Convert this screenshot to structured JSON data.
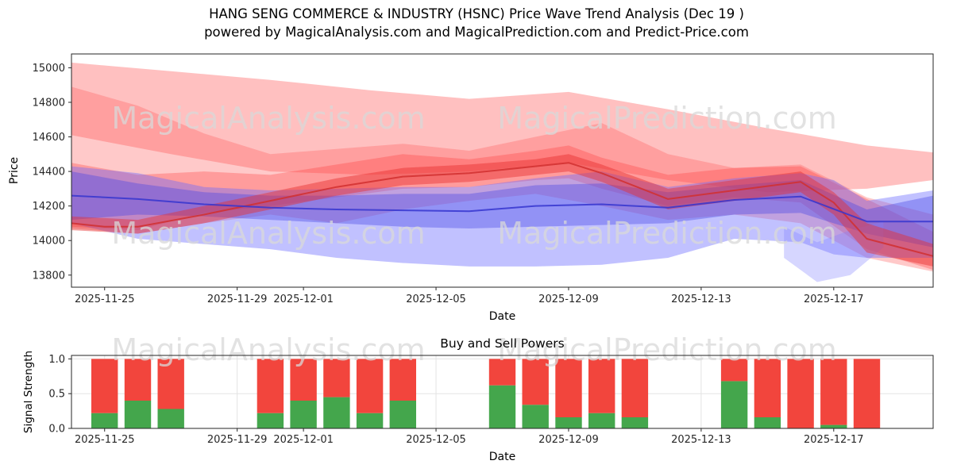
{
  "title": "HANG SENG COMMERCE & INDUSTRY (HSNC) Price Wave Trend Analysis (Dec 19 )",
  "subtitle": "powered by MagicalAnalysis.com and MagicalPrediction.com and Predict-Price.com",
  "watermarks": [
    "MagicalAnalysis.com",
    "MagicalPrediction.com"
  ],
  "chart_data": [
    {
      "type": "area",
      "name": "price-wave-trend",
      "xlabel": "Date",
      "ylabel": "Price",
      "x_range_days": 26,
      "x_start_date": "2025-11-24",
      "ylim": [
        13730,
        15080
      ],
      "yticks": [
        13800,
        14000,
        14200,
        14400,
        14600,
        14800,
        15000
      ],
      "xticks": [
        {
          "day": 1,
          "label": "2025-11-25"
        },
        {
          "day": 5,
          "label": "2025-11-29"
        },
        {
          "day": 7,
          "label": "2025-12-01"
        },
        {
          "day": 11,
          "label": "2025-12-05"
        },
        {
          "day": 15,
          "label": "2025-12-09"
        },
        {
          "day": 19,
          "label": "2025-12-13"
        },
        {
          "day": 23,
          "label": "2025-12-17"
        }
      ],
      "bands": [
        {
          "name": "upper-forecast-band",
          "color": "#ff5a5a",
          "opacity": 0.38,
          "x": [
            0,
            3,
            6,
            9,
            12,
            15,
            18,
            21,
            24,
            26
          ],
          "upper": [
            15030,
            14980,
            14930,
            14870,
            14820,
            14860,
            14760,
            14650,
            14550,
            14510
          ],
          "lower": [
            14610,
            14500,
            14400,
            14380,
            14400,
            14450,
            14350,
            14280,
            14300,
            14350
          ]
        },
        {
          "name": "mid-forecast-band",
          "color": "#ff5a5a",
          "opacity": 0.33,
          "x": [
            0,
            2,
            4,
            6,
            8,
            10,
            12,
            14,
            16,
            18,
            20,
            22,
            24,
            26
          ],
          "upper": [
            14890,
            14780,
            14620,
            14500,
            14530,
            14560,
            14520,
            14600,
            14680,
            14500,
            14420,
            14440,
            14250,
            14150
          ],
          "lower": [
            14070,
            14040,
            14100,
            14150,
            14100,
            14180,
            14230,
            14270,
            14200,
            14120,
            14150,
            14100,
            13900,
            13820
          ]
        },
        {
          "name": "inner-red-band",
          "color": "#ff4040",
          "opacity": 0.33,
          "x": [
            0,
            2,
            4,
            6,
            8,
            10,
            12,
            14,
            15,
            16,
            18,
            20,
            22,
            24,
            26
          ],
          "upper": [
            14450,
            14380,
            14400,
            14380,
            14440,
            14500,
            14470,
            14520,
            14550,
            14480,
            14380,
            14420,
            14430,
            14240,
            14050
          ],
          "lower": [
            14080,
            14060,
            14160,
            14200,
            14250,
            14300,
            14310,
            14350,
            14360,
            14300,
            14200,
            14250,
            14220,
            13950,
            13830
          ]
        },
        {
          "name": "outer-blue-band",
          "color": "#6b6bff",
          "opacity": 0.42,
          "x": [
            0,
            2,
            4,
            6,
            8,
            10,
            12,
            14,
            16,
            18,
            20,
            22,
            23,
            24,
            26
          ],
          "upper": [
            14430,
            14390,
            14310,
            14290,
            14300,
            14310,
            14310,
            14360,
            14400,
            14310,
            14360,
            14390,
            14350,
            14230,
            14290
          ],
          "lower": [
            14100,
            14010,
            13980,
            13950,
            13900,
            13870,
            13850,
            13850,
            13860,
            13900,
            14010,
            13990,
            13920,
            13900,
            13900
          ]
        },
        {
          "name": "inner-blue-band",
          "color": "#4747e6",
          "opacity": 0.38,
          "x": [
            0,
            2,
            4,
            6,
            8,
            10,
            12,
            14,
            16,
            18,
            20,
            22,
            24,
            26
          ],
          "upper": [
            14400,
            14330,
            14280,
            14260,
            14260,
            14270,
            14270,
            14320,
            14330,
            14280,
            14320,
            14350,
            14180,
            14260
          ],
          "lower": [
            14120,
            14150,
            14140,
            14120,
            14100,
            14080,
            14070,
            14080,
            14090,
            14100,
            14150,
            14160,
            14040,
            13960
          ]
        },
        {
          "name": "blue-dip-patch",
          "color": "#8080ff",
          "opacity": 0.32,
          "x": [
            21.5,
            22.5,
            23.5,
            24.5
          ],
          "upper": [
            14080,
            13990,
            14060,
            14110
          ],
          "lower": [
            13900,
            13760,
            13800,
            13960
          ]
        },
        {
          "name": "red-core-band",
          "color": "#e62e2e",
          "opacity": 0.45,
          "x": [
            0,
            2,
            4,
            6,
            8,
            10,
            12,
            14,
            15,
            16,
            18,
            20,
            22,
            23,
            24,
            26
          ],
          "upper": [
            14140,
            14120,
            14200,
            14280,
            14360,
            14420,
            14440,
            14470,
            14500,
            14440,
            14300,
            14350,
            14400,
            14280,
            14100,
            13980
          ],
          "lower": [
            14060,
            14040,
            14100,
            14180,
            14260,
            14320,
            14340,
            14380,
            14400,
            14340,
            14180,
            14230,
            14280,
            14150,
            13930,
            13850
          ]
        }
      ],
      "lines": [
        {
          "name": "red-trend-line",
          "color": "#d12f2f",
          "width": 2,
          "opacity": 0.85,
          "x": [
            0,
            1,
            2,
            4,
            6,
            8,
            10,
            12,
            14,
            15,
            16,
            18,
            20,
            22,
            23,
            24,
            26
          ],
          "y": [
            14100,
            14080,
            14080,
            14150,
            14230,
            14310,
            14370,
            14390,
            14430,
            14450,
            14390,
            14240,
            14290,
            14340,
            14220,
            14010,
            13910
          ]
        },
        {
          "name": "blue-trend-line",
          "color": "#3535cf",
          "width": 2,
          "opacity": 0.85,
          "x": [
            0,
            2,
            4,
            6,
            8,
            10,
            12,
            14,
            16,
            18,
            20,
            22,
            24,
            26
          ],
          "y": [
            14260,
            14240,
            14210,
            14190,
            14180,
            14175,
            14170,
            14200,
            14210,
            14190,
            14235,
            14255,
            14110,
            14110
          ]
        }
      ]
    },
    {
      "type": "bar",
      "name": "buy-sell-powers",
      "title": "Buy and Sell Powers",
      "xlabel": "Date",
      "ylabel": "Signal Strength",
      "x_range_days": 26,
      "ylim": [
        0,
        1.05
      ],
      "yticks": [
        {
          "v": 0.0,
          "label": "0.0"
        },
        {
          "v": 0.5,
          "label": "0.5"
        },
        {
          "v": 1.0,
          "label": "1.0"
        }
      ],
      "xticks": [
        {
          "day": 1,
          "label": "2025-11-25"
        },
        {
          "day": 5,
          "label": "2025-11-29"
        },
        {
          "day": 7,
          "label": "2025-12-01"
        },
        {
          "day": 11,
          "label": "2025-12-05"
        },
        {
          "day": 15,
          "label": "2025-12-09"
        },
        {
          "day": 19,
          "label": "2025-12-13"
        },
        {
          "day": 23,
          "label": "2025-12-17"
        }
      ],
      "series": [
        {
          "name": "Buy",
          "color": "#44a64c"
        },
        {
          "name": "Sell",
          "color": "#f2453d"
        }
      ],
      "bars": [
        {
          "day": 1,
          "date": "2025-11-25",
          "buy": 0.22,
          "sell": 0.78
        },
        {
          "day": 2,
          "date": "2025-11-26",
          "buy": 0.4,
          "sell": 0.6
        },
        {
          "day": 3,
          "date": "2025-11-27",
          "buy": 0.28,
          "sell": 0.72
        },
        {
          "day": 6,
          "date": "2025-11-30",
          "buy": 0.22,
          "sell": 0.78
        },
        {
          "day": 7,
          "date": "2025-12-01",
          "buy": 0.4,
          "sell": 0.6
        },
        {
          "day": 8,
          "date": "2025-12-02",
          "buy": 0.45,
          "sell": 0.55
        },
        {
          "day": 9,
          "date": "2025-12-03",
          "buy": 0.22,
          "sell": 0.78
        },
        {
          "day": 10,
          "date": "2025-12-04",
          "buy": 0.4,
          "sell": 0.6
        },
        {
          "day": 13,
          "date": "2025-12-07",
          "buy": 0.62,
          "sell": 0.38
        },
        {
          "day": 14,
          "date": "2025-12-08",
          "buy": 0.34,
          "sell": 0.66
        },
        {
          "day": 15,
          "date": "2025-12-09",
          "buy": 0.16,
          "sell": 0.84
        },
        {
          "day": 16,
          "date": "2025-12-10",
          "buy": 0.22,
          "sell": 0.78
        },
        {
          "day": 17,
          "date": "2025-12-11",
          "buy": 0.16,
          "sell": 0.84
        },
        {
          "day": 20,
          "date": "2025-12-14",
          "buy": 0.68,
          "sell": 0.32
        },
        {
          "day": 21,
          "date": "2025-12-15",
          "buy": 0.16,
          "sell": 0.84
        },
        {
          "day": 22,
          "date": "2025-12-16",
          "buy": 0.0,
          "sell": 1.0
        },
        {
          "day": 23,
          "date": "2025-12-17",
          "buy": 0.05,
          "sell": 0.95
        },
        {
          "day": 24,
          "date": "2025-12-18",
          "buy": 0.0,
          "sell": 1.0
        }
      ]
    }
  ]
}
